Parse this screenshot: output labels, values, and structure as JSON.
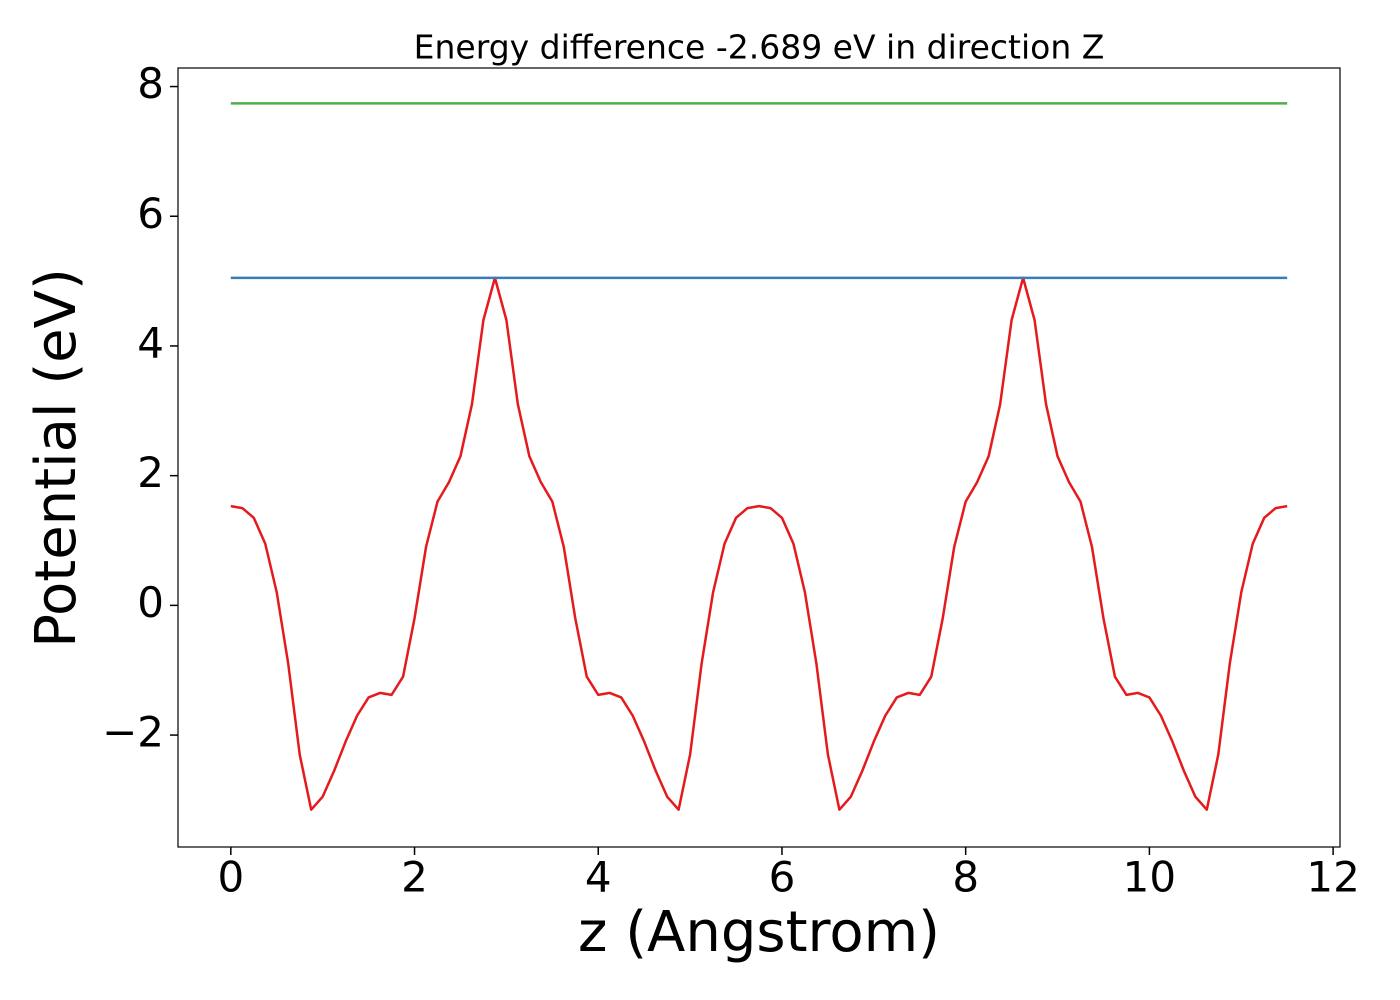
{
  "chart_data": {
    "type": "line",
    "title": "Energy difference -2.689 eV in direction Z",
    "x_label": "z (Angstrom)",
    "y_label": "Potential (eV)",
    "xlim": [
      -0.575,
      12.075
    ],
    "ylim": [
      -3.726,
      8.286
    ],
    "xticks": [
      0,
      2,
      4,
      6,
      8,
      10,
      12
    ],
    "yticks": [
      {
        "value": -2,
        "label": "−2"
      },
      0,
      2,
      4,
      6,
      8
    ],
    "grid": false,
    "series": [
      {
        "color": "#e41a1c",
        "x": [
          0,
          0.125,
          0.25,
          0.375,
          0.5,
          0.625,
          0.75,
          0.875,
          1,
          1.125,
          1.25,
          1.375,
          1.5,
          1.625,
          1.75,
          1.875,
          2,
          2.125,
          2.25,
          2.375,
          2.5,
          2.625,
          2.75,
          2.875,
          3,
          3.125,
          3.25,
          3.375,
          3.5,
          3.625,
          3.75,
          3.875,
          4,
          4.125,
          4.25,
          4.375,
          4.5,
          4.625,
          4.75,
          4.875,
          5,
          5.125,
          5.25,
          5.375,
          5.5,
          5.625,
          5.75,
          5.875,
          6,
          6.125,
          6.25,
          6.375,
          6.5,
          6.625,
          6.75,
          6.875,
          7,
          7.125,
          7.25,
          7.375,
          7.5,
          7.625,
          7.75,
          7.875,
          8,
          8.125,
          8.25,
          8.375,
          8.5,
          8.625,
          8.75,
          8.875,
          9,
          9.125,
          9.25,
          9.375,
          9.5,
          9.625,
          9.75,
          9.875,
          10,
          10.125,
          10.25,
          10.375,
          10.5,
          10.625,
          10.75,
          10.875,
          11,
          11.125,
          11.25,
          11.375,
          11.5
        ],
        "values": [
          1.53,
          1.5,
          1.35,
          0.95,
          0.2,
          -0.9,
          -2.3,
          -3.15,
          -2.95,
          -2.55,
          -2.1,
          -1.7,
          -1.42,
          -1.35,
          -1.38,
          -1.1,
          -0.2,
          0.9,
          1.6,
          1.9,
          2.3,
          3.1,
          4.4,
          5.05,
          4.4,
          3.1,
          2.3,
          1.9,
          1.6,
          0.9,
          -0.2,
          -1.1,
          -1.38,
          -1.35,
          -1.42,
          -1.7,
          -2.1,
          -2.55,
          -2.95,
          -3.15,
          -2.3,
          -0.9,
          0.2,
          0.95,
          1.35,
          1.5,
          1.53,
          1.5,
          1.35,
          0.95,
          0.2,
          -0.9,
          -2.3,
          -3.15,
          -2.95,
          -2.55,
          -2.1,
          -1.7,
          -1.42,
          -1.35,
          -1.38,
          -1.1,
          -0.2,
          0.9,
          1.6,
          1.9,
          2.3,
          3.1,
          4.4,
          5.05,
          4.4,
          3.1,
          2.3,
          1.9,
          1.6,
          0.9,
          -0.2,
          -1.1,
          -1.38,
          -1.35,
          -1.42,
          -1.7,
          -2.1,
          -2.55,
          -2.95,
          -3.15,
          -2.3,
          -0.9,
          0.2,
          0.95,
          1.35,
          1.5,
          1.53
        ]
      },
      {
        "color": "#377eb8",
        "x": [
          0,
          11.5
        ],
        "values": [
          5.05,
          5.05
        ]
      },
      {
        "color": "#4daf4a",
        "x": [
          0,
          11.5
        ],
        "values": [
          7.74,
          7.74
        ]
      }
    ]
  }
}
